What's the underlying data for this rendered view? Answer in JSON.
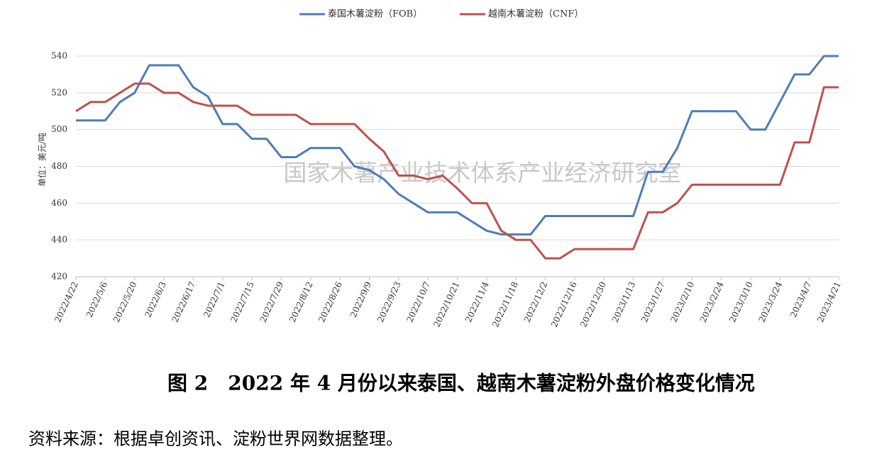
{
  "chart_data": {
    "type": "line",
    "title": "图 2　2022 年 4 月份以来泰国、越南木薯淀粉外盘价格变化情况",
    "source": "资料来源：根据卓创资讯、淀粉世界网数据整理。",
    "watermark": "国家木薯产业技术体系产业经济研究室",
    "y_label": "单位：美元/吨",
    "legend": "top",
    "grid": true,
    "categories": [
      "2022/4/22",
      null,
      "2022/5/6",
      null,
      "2022/5/20",
      null,
      "2022/6/3",
      null,
      "2022/6/17",
      null,
      "2022/7/1",
      null,
      "2022/7/15",
      null,
      "2022/7/29",
      null,
      "2022/8/12",
      null,
      "2022/8/26",
      null,
      "2022/9/9",
      null,
      "2022/9/23",
      null,
      "2022/10/7",
      null,
      "2022/10/21",
      null,
      "2022/11/4",
      null,
      "2022/11/18",
      null,
      "2022/12/2",
      null,
      "2022/12/16",
      null,
      "2022/12/30",
      null,
      "2023/1/13",
      null,
      "2023/1/27",
      null,
      "2023/2/10",
      null,
      "2023/2/24",
      null,
      "2023/3/10",
      null,
      "2023/3/24",
      null,
      "2023/4/7",
      null,
      "2023/4/21"
    ],
    "series": [
      {
        "name": "泰国木薯淀粉（FOB）",
        "color": "#4f7cb8",
        "values": [
          505,
          505,
          505,
          515,
          520,
          535,
          535,
          535,
          523,
          518,
          503,
          503,
          495,
          495,
          485,
          485,
          490,
          490,
          490,
          480,
          478,
          473,
          465,
          460,
          455,
          455,
          455,
          450,
          445,
          443,
          443,
          443,
          453,
          453,
          453,
          453,
          453,
          453,
          453,
          477,
          477,
          490,
          510,
          510,
          510,
          510,
          500,
          500,
          515,
          530,
          530,
          540,
          540
        ]
      },
      {
        "name": "越南木薯淀粉（CNF）",
        "color": "#c0504d",
        "values": [
          510,
          515,
          515,
          520,
          525,
          525,
          520,
          520,
          515,
          513,
          513,
          513,
          508,
          508,
          508,
          508,
          503,
          503,
          503,
          503,
          495,
          488,
          475,
          475,
          473,
          475,
          468,
          460,
          460,
          445,
          440,
          440,
          430,
          430,
          435,
          435,
          435,
          435,
          435,
          455,
          455,
          460,
          470,
          470,
          470,
          470,
          470,
          470,
          470,
          493,
          493,
          523,
          523
        ]
      }
    ],
    "ylim": [
      420,
      540
    ],
    "yticks": [
      420,
      440,
      460,
      480,
      500,
      520,
      540
    ]
  }
}
